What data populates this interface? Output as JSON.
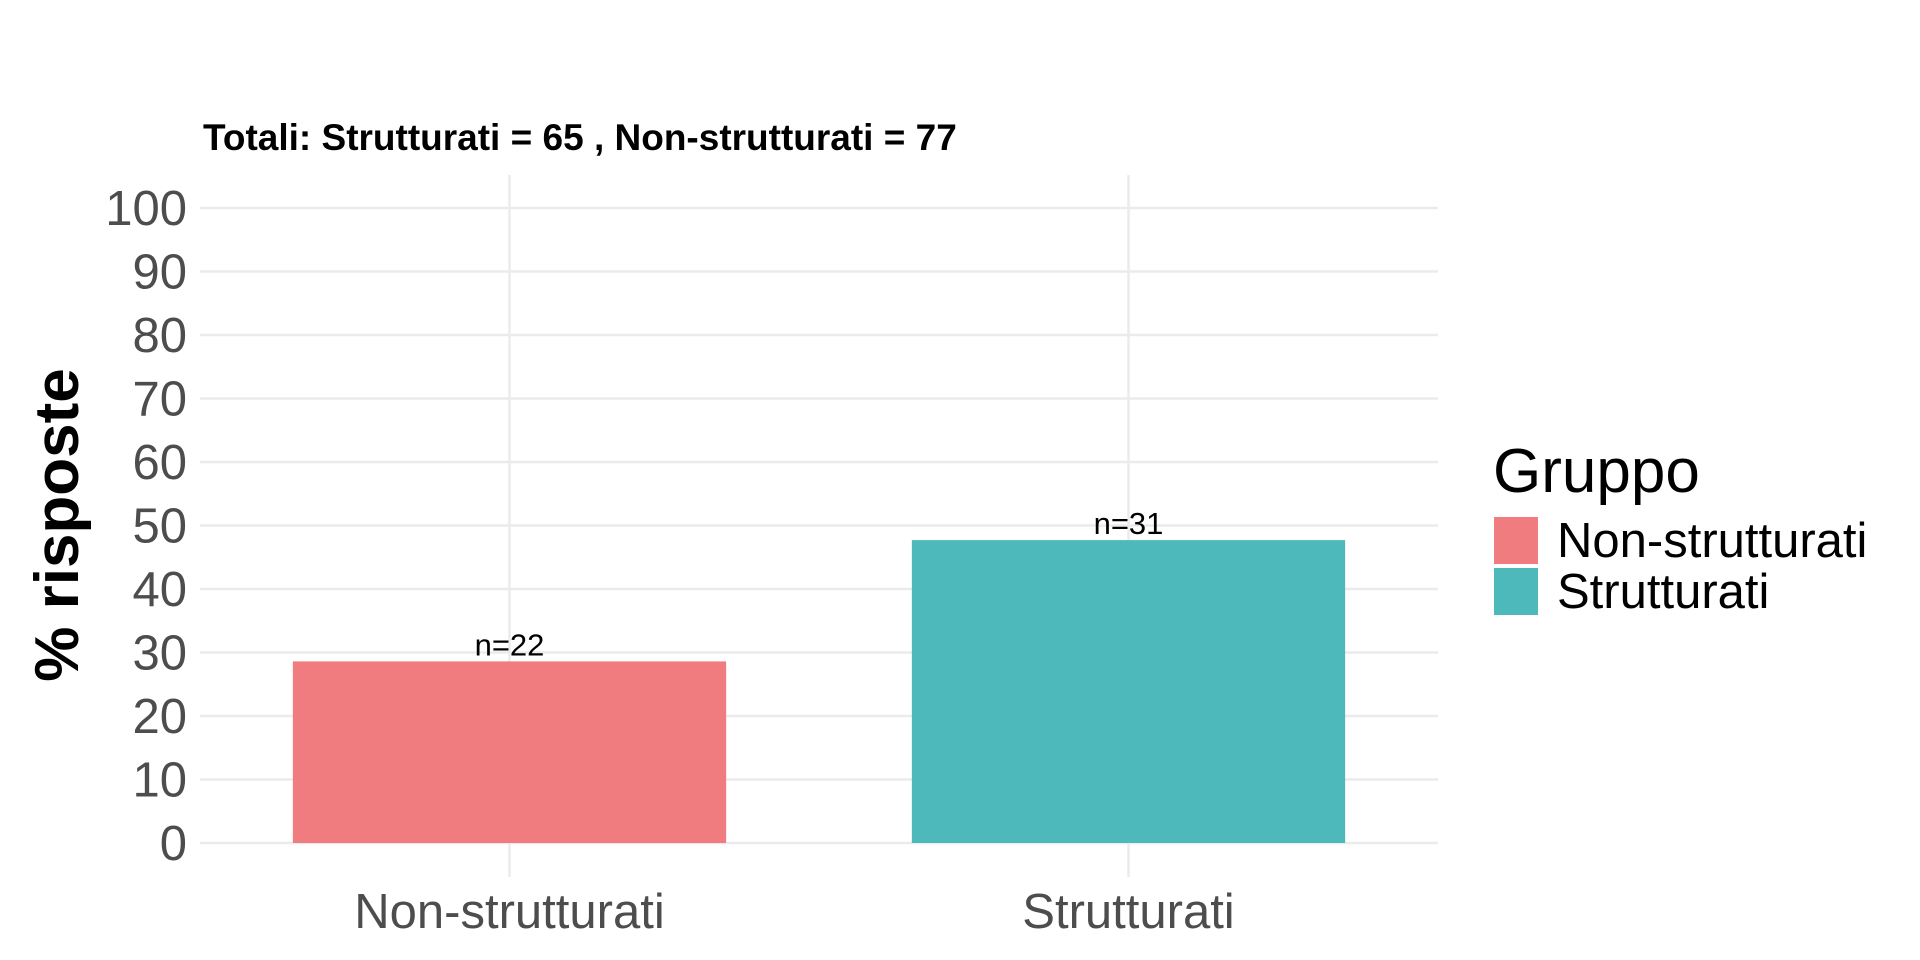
{
  "chart_data": {
    "type": "bar",
    "subtitle": "Totali: Strutturati = 65 , Non-strutturati = 77",
    "ylabel": "% risposte",
    "xlabel": "",
    "categories": [
      "Non-strutturati",
      "Strutturati"
    ],
    "values": [
      28.6,
      47.7
    ],
    "data_labels": [
      "n=22",
      "n=31"
    ],
    "colors": [
      "#F07C80",
      "#4EB9BB"
    ],
    "ylim": [
      0,
      100
    ],
    "yticks": [
      0,
      10,
      20,
      30,
      40,
      50,
      60,
      70,
      80,
      90,
      100
    ],
    "grid": true,
    "legend": {
      "title": "Gruppo",
      "position": "right",
      "entries": [
        "Non-strutturati",
        "Strutturati"
      ]
    }
  }
}
